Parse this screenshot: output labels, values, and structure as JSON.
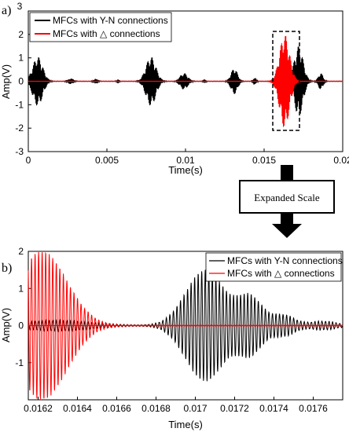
{
  "chart_data": [
    {
      "panel_label": "a)",
      "type": "line",
      "xlabel": "Time(s)",
      "ylabel": "Amp(V)",
      "xlim": [
        0,
        0.02
      ],
      "ylim": [
        -3,
        3
      ],
      "x_ticks": [
        "0",
        "0.005",
        "0.01",
        "0.015",
        "0.02"
      ],
      "y_ticks": [
        "-3",
        "-2",
        "-1",
        "0",
        "1",
        "2"
      ],
      "y_top_label": "3",
      "legend_placement": "top-left",
      "series": [
        {
          "name": "MFCs with Y-N connections",
          "color": "#000000",
          "bursts": [
            {
              "center": 0.0006,
              "width": 0.00045,
              "amp": 1.05
            },
            {
              "center": 0.0027,
              "width": 0.00025,
              "amp": 0.12
            },
            {
              "center": 0.0043,
              "width": 0.0002,
              "amp": 0.1
            },
            {
              "center": 0.0057,
              "width": 0.00012,
              "amp": 0.08
            },
            {
              "center": 0.0078,
              "width": 0.00045,
              "amp": 1.05
            },
            {
              "center": 0.0099,
              "width": 0.00035,
              "amp": 0.35
            },
            {
              "center": 0.0112,
              "width": 0.00012,
              "amp": 0.08
            },
            {
              "center": 0.0131,
              "width": 0.0003,
              "amp": 0.55
            },
            {
              "center": 0.0144,
              "width": 0.00015,
              "amp": 0.15
            },
            {
              "center": 0.0172,
              "width": 0.0004,
              "amp": 1.5
            },
            {
              "center": 0.0186,
              "width": 0.00022,
              "amp": 0.35
            }
          ]
        },
        {
          "name": "MFCs with △ connections",
          "color": "#ff0000",
          "bursts": [
            {
              "center": 0.0163,
              "width": 0.00045,
              "amp": 2.0
            }
          ]
        }
      ],
      "annotation": {
        "type": "dashed-box",
        "x_range": [
          0.0159,
          0.0175
        ],
        "y_range": [
          -2.1,
          2.1
        ]
      }
    },
    {
      "panel_label": "b)",
      "type": "line",
      "xlabel": "Time(s)",
      "ylabel": "Amp(V)",
      "xlim": [
        0.01615,
        0.01775
      ],
      "ylim": [
        -2,
        2
      ],
      "x_ticks": [
        "0.0162",
        "0.0164",
        "0.0166",
        "0.0168",
        "0.017",
        "0.0172",
        "0.0174",
        "0.0176"
      ],
      "y_ticks": [
        "-1",
        "0",
        "1",
        "2"
      ],
      "legend_placement": "top-right",
      "series": [
        {
          "name": "MFCs with Y-N connections",
          "color": "#000000",
          "bursts": [
            {
              "center": 0.01705,
              "width": 0.00014,
              "amp": 1.5
            },
            {
              "center": 0.01728,
              "width": 9e-05,
              "amp": 0.75
            },
            {
              "center": 0.01745,
              "width": 8e-05,
              "amp": 0.28
            },
            {
              "center": 0.01765,
              "width": 0.0001,
              "amp": 0.12
            },
            {
              "center": 0.0163,
              "width": 0.00025,
              "amp": 0.15
            }
          ]
        },
        {
          "name": "MFCs with △ connections",
          "color": "#ff0000",
          "bursts": [
            {
              "center": 0.01622,
              "width": 0.00018,
              "amp": 2.0
            }
          ]
        }
      ]
    }
  ],
  "arrow": {
    "label": "Expanded Scale"
  }
}
